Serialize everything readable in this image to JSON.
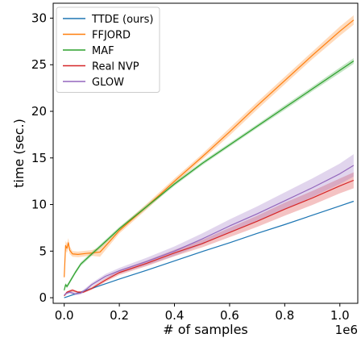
{
  "chart_data": {
    "type": "line",
    "title": "",
    "xlabel": "# of samples",
    "ylabel": "time (sec.)",
    "x_offset_label": "1e6",
    "xlim": [
      -0.04,
      1.065
    ],
    "ylim": [
      -0.6,
      31.6
    ],
    "x_ticks": [
      0.0,
      0.2,
      0.4,
      0.6,
      0.8,
      1.0
    ],
    "x_tick_labels": [
      "0.0",
      "0.2",
      "0.4",
      "0.6",
      "0.8",
      "1.0"
    ],
    "y_ticks": [
      0,
      5,
      10,
      15,
      20,
      25,
      30
    ],
    "y_tick_labels": [
      "0",
      "5",
      "10",
      "15",
      "20",
      "25",
      "30"
    ],
    "grid": false,
    "legend_position": "top-left",
    "series": [
      {
        "name": "TTDE (ours)",
        "color": "#1f77b4",
        "x": [
          0.0,
          0.01,
          0.05,
          0.1,
          0.2,
          0.3,
          0.4,
          0.5,
          0.6,
          0.7,
          0.8,
          0.9,
          1.0,
          1.05
        ],
        "y": [
          0.0,
          0.1,
          0.5,
          1.0,
          2.0,
          2.95,
          3.95,
          4.95,
          5.9,
          6.9,
          7.85,
          8.85,
          9.85,
          10.35
        ],
        "band": [
          0.05,
          0.05,
          0.05,
          0.05,
          0.05,
          0.05,
          0.05,
          0.05,
          0.05,
          0.05,
          0.05,
          0.05,
          0.05,
          0.05
        ]
      },
      {
        "name": "FFJORD",
        "color": "#ff7f0e",
        "x": [
          0.0,
          0.005,
          0.01,
          0.015,
          0.02,
          0.03,
          0.05,
          0.08,
          0.1,
          0.13,
          0.2,
          0.3,
          0.4,
          0.5,
          0.6,
          0.7,
          0.8,
          0.9,
          1.0,
          1.05
        ],
        "y": [
          2.2,
          5.6,
          5.3,
          5.9,
          5.1,
          4.7,
          4.65,
          4.75,
          4.8,
          4.9,
          7.2,
          9.8,
          12.5,
          15.1,
          17.8,
          20.6,
          23.3,
          26.0,
          28.6,
          29.8
        ],
        "band": [
          0.3,
          0.5,
          0.5,
          0.5,
          0.4,
          0.3,
          0.3,
          0.3,
          0.3,
          0.5,
          0.3,
          0.3,
          0.3,
          0.3,
          0.4,
          0.4,
          0.4,
          0.4,
          0.5,
          0.5
        ]
      },
      {
        "name": "MAF",
        "color": "#2ca02c",
        "x": [
          0.0,
          0.005,
          0.01,
          0.02,
          0.04,
          0.06,
          0.1,
          0.13,
          0.2,
          0.3,
          0.4,
          0.5,
          0.6,
          0.7,
          0.8,
          0.9,
          1.0,
          1.05
        ],
        "y": [
          0.8,
          1.4,
          1.2,
          1.7,
          2.7,
          3.6,
          4.7,
          5.5,
          7.4,
          9.8,
          12.2,
          14.4,
          16.4,
          18.4,
          20.4,
          22.4,
          24.4,
          25.4
        ],
        "band": [
          0.15,
          0.2,
          0.2,
          0.2,
          0.2,
          0.2,
          0.2,
          0.2,
          0.2,
          0.2,
          0.2,
          0.2,
          0.2,
          0.2,
          0.25,
          0.25,
          0.3,
          0.3
        ]
      },
      {
        "name": "Real NVP",
        "color": "#d62728",
        "x": [
          0.0,
          0.01,
          0.02,
          0.03,
          0.05,
          0.07,
          0.1,
          0.15,
          0.2,
          0.3,
          0.4,
          0.5,
          0.6,
          0.7,
          0.8,
          0.9,
          1.0,
          1.05
        ],
        "y": [
          0.2,
          0.6,
          0.7,
          0.8,
          0.6,
          0.6,
          1.0,
          1.9,
          2.7,
          3.7,
          4.8,
          5.8,
          7.0,
          8.2,
          9.5,
          10.7,
          12.0,
          12.6
        ],
        "band": [
          0.1,
          0.1,
          0.15,
          0.15,
          0.1,
          0.1,
          0.15,
          0.2,
          0.25,
          0.3,
          0.35,
          0.4,
          0.5,
          0.6,
          0.7,
          0.75,
          0.8,
          0.85
        ]
      },
      {
        "name": "GLOW",
        "color": "#9467bd",
        "x": [
          0.0,
          0.01,
          0.02,
          0.04,
          0.06,
          0.08,
          0.1,
          0.15,
          0.2,
          0.3,
          0.4,
          0.5,
          0.6,
          0.7,
          0.8,
          0.9,
          1.0,
          1.05
        ],
        "y": [
          0.3,
          0.5,
          0.6,
          0.4,
          0.5,
          0.9,
          1.4,
          2.3,
          2.9,
          3.9,
          5.0,
          6.3,
          7.7,
          9.0,
          10.4,
          11.8,
          13.3,
          14.2
        ],
        "band": [
          0.1,
          0.15,
          0.15,
          0.15,
          0.15,
          0.2,
          0.2,
          0.25,
          0.3,
          0.4,
          0.5,
          0.6,
          0.7,
          0.8,
          0.9,
          1.0,
          1.1,
          1.2
        ]
      }
    ]
  }
}
